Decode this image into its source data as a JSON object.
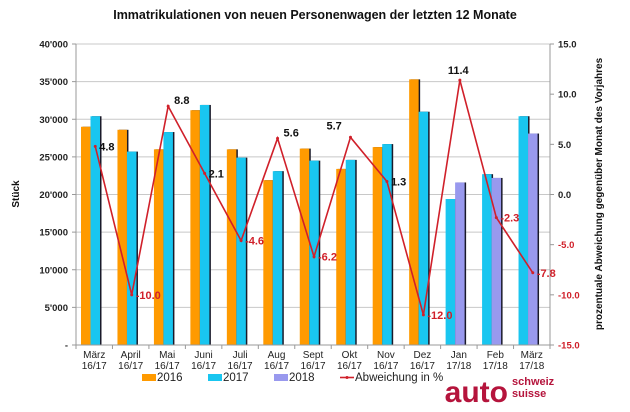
{
  "chart_data": {
    "type": "bar",
    "title": "Immatrikulationen von neuen Personenwagen der letzten 12 Monate",
    "ylabel": "Stück",
    "y2label": "prozentuale Abweichung gegenüber Monat des Vorjahres",
    "xlabel": "",
    "ylim": [
      0,
      40000
    ],
    "y2lim": [
      -15,
      15
    ],
    "grid": true,
    "legend_position": "bottom",
    "yticks": [
      "-",
      "5'000",
      "10'000",
      "15'000",
      "20'000",
      "25'000",
      "30'000",
      "35'000",
      "40'000"
    ],
    "y2ticks": [
      "-15.0",
      "-10.0",
      "-5.0",
      "0.0",
      "5.0",
      "10.0",
      "15.0"
    ],
    "categories": [
      [
        "März",
        "16/17"
      ],
      [
        "April",
        "16/17"
      ],
      [
        "Mai",
        "16/17"
      ],
      [
        "Juni",
        "16/17"
      ],
      [
        "Juli",
        "16/17"
      ],
      [
        "Aug",
        "16/17"
      ],
      [
        "Sept",
        "16/17"
      ],
      [
        "Okt",
        "16/17"
      ],
      [
        "Nov",
        "16/17"
      ],
      [
        "Dez",
        "16/17"
      ],
      [
        "Jan",
        "17/18"
      ],
      [
        "Feb",
        "17/18"
      ],
      [
        "März",
        "17/18"
      ]
    ],
    "series": [
      {
        "name": "2016",
        "type": "bar",
        "color": "#ff9a00",
        "slot": 0,
        "values": [
          29000,
          28600,
          26000,
          31200,
          26000,
          21900,
          26100,
          23400,
          26300,
          35300,
          null,
          null,
          null
        ]
      },
      {
        "name": "2017",
        "type": "bar",
        "color": "#19c6f0",
        "slots": [
          1,
          1,
          1,
          1,
          1,
          1,
          1,
          1,
          1,
          1,
          0,
          0,
          0
        ],
        "values": [
          30400,
          25700,
          28300,
          31900,
          24900,
          23100,
          24500,
          24600,
          26700,
          31000,
          19400,
          22700,
          30400
        ]
      },
      {
        "name": "2018",
        "type": "bar",
        "color": "#9999ee",
        "slot": 1,
        "values": [
          null,
          null,
          null,
          null,
          null,
          null,
          null,
          null,
          null,
          null,
          21600,
          22200,
          28100
        ]
      },
      {
        "name": "Abweichung in %",
        "type": "line",
        "axis": "right",
        "color": "#d0202a",
        "values": [
          4.8,
          -10.0,
          8.8,
          2.1,
          -4.6,
          5.6,
          -6.2,
          5.7,
          1.3,
          -12.0,
          11.4,
          -2.3,
          -7.8
        ],
        "labels": [
          "4.8",
          "-10.0",
          "8.8",
          "2.1",
          "-4.6",
          "5.6",
          "-6.2",
          "5.7",
          "1.3",
          "-12.0",
          "11.4",
          "-2.3",
          "-7.8"
        ]
      }
    ]
  },
  "logo": {
    "main": "auto",
    "line1": "schweiz",
    "line2": "suisse"
  }
}
